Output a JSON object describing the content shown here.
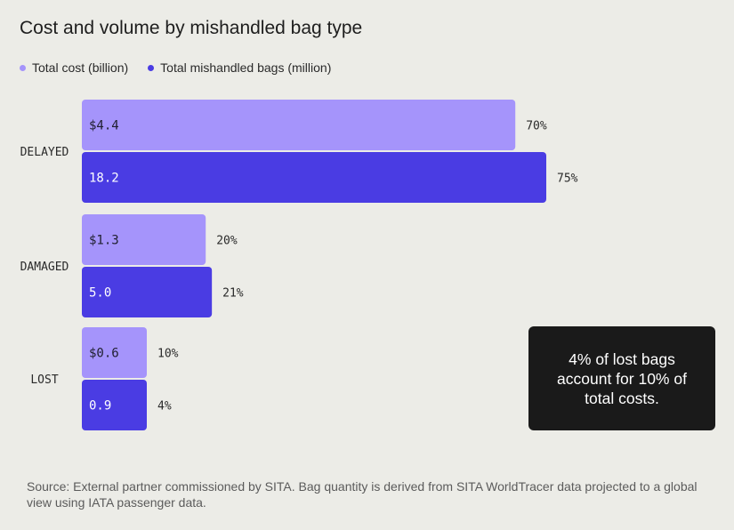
{
  "chart_data": {
    "type": "bar",
    "orientation": "horizontal",
    "title": "Cost and volume by mishandled bag type",
    "categories": [
      "DELAYED",
      "DAMAGED",
      "LOST"
    ],
    "series": [
      {
        "name": "Total cost (billion)",
        "color": "#a594fb",
        "values": [
          4.4,
          1.3,
          0.6
        ],
        "value_labels": [
          "$4.4",
          "$1.3",
          "$0.6"
        ],
        "share_labels": [
          "70%",
          "20%",
          "10%"
        ],
        "shares": [
          70,
          20,
          10
        ]
      },
      {
        "name": "Total mishandled bags (million)",
        "color": "#4a3ce3",
        "values": [
          18.2,
          5.0,
          0.9
        ],
        "value_labels": [
          "18.2",
          "5.0",
          "0.9"
        ],
        "share_labels": [
          "75%",
          "21%",
          "4%"
        ],
        "shares": [
          75,
          21,
          4
        ]
      }
    ],
    "legend_position": "top-left",
    "grid": false
  },
  "callout": {
    "text": "4% of lost bags account for 10% of total costs."
  },
  "source": {
    "text": "Source: External partner commissioned by SITA. Bag quantity is derived from SITA WorldTracer data projected to a global view using IATA passenger data."
  }
}
